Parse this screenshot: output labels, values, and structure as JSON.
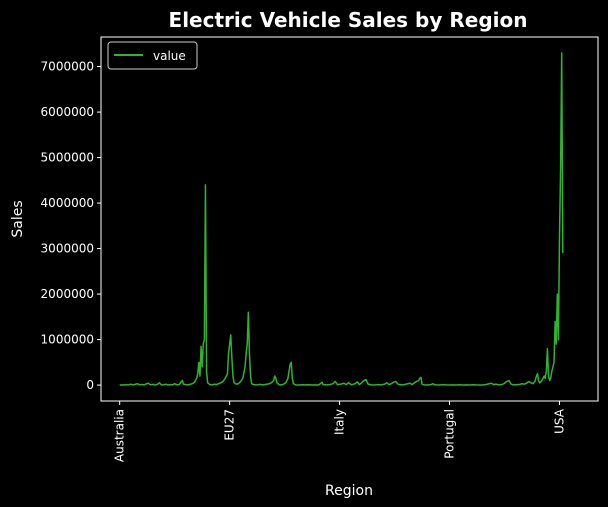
{
  "chart_data": {
    "type": "line",
    "title": "Electric Vehicle Sales by Region",
    "xlabel": "Region",
    "ylabel": "Sales",
    "x_tick_labels": [
      "Australia",
      "EU27",
      "Italy",
      "Portugal",
      "USA"
    ],
    "x_tick_positions": [
      0,
      100,
      200,
      300,
      400
    ],
    "xlim": [
      -17,
      435
    ],
    "ylim": [
      -350000,
      7650000
    ],
    "y_ticks": [
      0,
      1000000,
      2000000,
      3000000,
      4000000,
      5000000,
      6000000,
      7000000
    ],
    "y_tick_labels": [
      "0",
      "1000000",
      "2000000",
      "3000000",
      "4000000",
      "5000000",
      "6000000",
      "7000000"
    ],
    "grid": false,
    "legend_position": "top-left",
    "series": [
      {
        "name": "value",
        "color": "#2db52d",
        "points": [
          [
            0,
            0
          ],
          [
            2,
            5000
          ],
          [
            4,
            2000
          ],
          [
            6,
            10000
          ],
          [
            8,
            3000
          ],
          [
            10,
            20000
          ],
          [
            12,
            5000
          ],
          [
            14,
            15000
          ],
          [
            16,
            30000
          ],
          [
            18,
            8000
          ],
          [
            20,
            12000
          ],
          [
            22,
            4000
          ],
          [
            24,
            25000
          ],
          [
            26,
            40000
          ],
          [
            28,
            6000
          ],
          [
            30,
            15000
          ],
          [
            32,
            3000
          ],
          [
            34,
            10000
          ],
          [
            36,
            50000
          ],
          [
            38,
            5000
          ],
          [
            40,
            8000
          ],
          [
            42,
            20000
          ],
          [
            44,
            2000
          ],
          [
            46,
            10000
          ],
          [
            48,
            5000
          ],
          [
            50,
            30000
          ],
          [
            52,
            4000
          ],
          [
            54,
            10000
          ],
          [
            56,
            70000
          ],
          [
            57,
            100000
          ],
          [
            58,
            20000
          ],
          [
            60,
            10000
          ],
          [
            62,
            5000
          ],
          [
            64,
            15000
          ],
          [
            66,
            30000
          ],
          [
            68,
            60000
          ],
          [
            70,
            150000
          ],
          [
            71,
            250000
          ],
          [
            72,
            500000
          ],
          [
            73,
            200000
          ],
          [
            74,
            850000
          ],
          [
            75,
            400000
          ],
          [
            76,
            900000
          ],
          [
            77,
            1000000
          ],
          [
            78,
            4400000
          ],
          [
            79,
            300000
          ],
          [
            80,
            50000
          ],
          [
            82,
            10000
          ],
          [
            84,
            5000
          ],
          [
            86,
            20000
          ],
          [
            88,
            10000
          ],
          [
            90,
            30000
          ],
          [
            92,
            50000
          ],
          [
            94,
            80000
          ],
          [
            96,
            150000
          ],
          [
            98,
            250000
          ],
          [
            99,
            700000
          ],
          [
            100,
            900000
          ],
          [
            101,
            1100000
          ],
          [
            102,
            600000
          ],
          [
            103,
            200000
          ],
          [
            104,
            50000
          ],
          [
            106,
            20000
          ],
          [
            108,
            30000
          ],
          [
            110,
            80000
          ],
          [
            112,
            150000
          ],
          [
            114,
            400000
          ],
          [
            115,
            700000
          ],
          [
            116,
            900000
          ],
          [
            117,
            1600000
          ],
          [
            118,
            700000
          ],
          [
            119,
            200000
          ],
          [
            120,
            30000
          ],
          [
            122,
            10000
          ],
          [
            124,
            5000
          ],
          [
            126,
            8000
          ],
          [
            128,
            15000
          ],
          [
            130,
            5000
          ],
          [
            132,
            10000
          ],
          [
            134,
            20000
          ],
          [
            136,
            30000
          ],
          [
            138,
            50000
          ],
          [
            140,
            100000
          ],
          [
            141,
            200000
          ],
          [
            142,
            150000
          ],
          [
            143,
            50000
          ],
          [
            145,
            10000
          ],
          [
            147,
            5000
          ],
          [
            149,
            20000
          ],
          [
            151,
            50000
          ],
          [
            153,
            150000
          ],
          [
            154,
            300000
          ],
          [
            155,
            450000
          ],
          [
            156,
            500000
          ],
          [
            157,
            150000
          ],
          [
            158,
            30000
          ],
          [
            160,
            5000
          ],
          [
            163,
            3000
          ],
          [
            166,
            6000
          ],
          [
            169,
            4000
          ],
          [
            172,
            8000
          ],
          [
            175,
            3000
          ],
          [
            178,
            5000
          ],
          [
            181,
            2000
          ],
          [
            184,
            60000
          ],
          [
            185,
            10000
          ],
          [
            188,
            5000
          ],
          [
            191,
            10000
          ],
          [
            194,
            30000
          ],
          [
            196,
            80000
          ],
          [
            198,
            10000
          ],
          [
            201,
            20000
          ],
          [
            204,
            40000
          ],
          [
            206,
            10000
          ],
          [
            208,
            50000
          ],
          [
            211,
            5000
          ],
          [
            214,
            30000
          ],
          [
            216,
            70000
          ],
          [
            218,
            10000
          ],
          [
            220,
            50000
          ],
          [
            222,
            100000
          ],
          [
            224,
            120000
          ],
          [
            226,
            20000
          ],
          [
            229,
            5000
          ],
          [
            232,
            3000
          ],
          [
            235,
            10000
          ],
          [
            238,
            5000
          ],
          [
            241,
            20000
          ],
          [
            243,
            50000
          ],
          [
            245,
            10000
          ],
          [
            247,
            30000
          ],
          [
            249,
            60000
          ],
          [
            251,
            80000
          ],
          [
            253,
            20000
          ],
          [
            256,
            5000
          ],
          [
            259,
            10000
          ],
          [
            262,
            30000
          ],
          [
            264,
            40000
          ],
          [
            266,
            10000
          ],
          [
            268,
            50000
          ],
          [
            270,
            80000
          ],
          [
            272,
            100000
          ],
          [
            273,
            150000
          ],
          [
            274,
            170000
          ],
          [
            275,
            20000
          ],
          [
            277,
            5000
          ],
          [
            280,
            3000
          ],
          [
            283,
            10000
          ],
          [
            285,
            30000
          ],
          [
            286,
            10000
          ],
          [
            288,
            5000
          ],
          [
            291,
            3000
          ],
          [
            294,
            10000
          ],
          [
            297,
            5000
          ],
          [
            300,
            3000
          ],
          [
            303,
            4000
          ],
          [
            306,
            2000
          ],
          [
            309,
            6000
          ],
          [
            312,
            3000
          ],
          [
            315,
            5000
          ],
          [
            318,
            2000
          ],
          [
            321,
            8000
          ],
          [
            324,
            4000
          ],
          [
            327,
            3000
          ],
          [
            330,
            5000
          ],
          [
            333,
            10000
          ],
          [
            336,
            30000
          ],
          [
            338,
            40000
          ],
          [
            340,
            10000
          ],
          [
            342,
            20000
          ],
          [
            345,
            5000
          ],
          [
            348,
            15000
          ],
          [
            350,
            40000
          ],
          [
            352,
            80000
          ],
          [
            354,
            100000
          ],
          [
            356,
            20000
          ],
          [
            358,
            5000
          ],
          [
            360,
            8000
          ],
          [
            362,
            10000
          ],
          [
            364,
            15000
          ],
          [
            366,
            30000
          ],
          [
            368,
            20000
          ],
          [
            370,
            40000
          ],
          [
            372,
            80000
          ],
          [
            374,
            50000
          ],
          [
            376,
            30000
          ],
          [
            378,
            100000
          ],
          [
            379,
            200000
          ],
          [
            380,
            250000
          ],
          [
            381,
            100000
          ],
          [
            382,
            50000
          ],
          [
            384,
            100000
          ],
          [
            386,
            200000
          ],
          [
            387,
            150000
          ],
          [
            388,
            300000
          ],
          [
            389,
            800000
          ],
          [
            390,
            200000
          ],
          [
            391,
            100000
          ],
          [
            392,
            150000
          ],
          [
            393,
            300000
          ],
          [
            394,
            400000
          ],
          [
            395,
            500000
          ],
          [
            396,
            1400000
          ],
          [
            397,
            900000
          ],
          [
            398,
            2000000
          ],
          [
            399,
            1000000
          ],
          [
            400,
            3300000
          ],
          [
            401,
            4800000
          ],
          [
            402,
            7300000
          ],
          [
            403,
            2900000
          ]
        ]
      }
    ]
  }
}
